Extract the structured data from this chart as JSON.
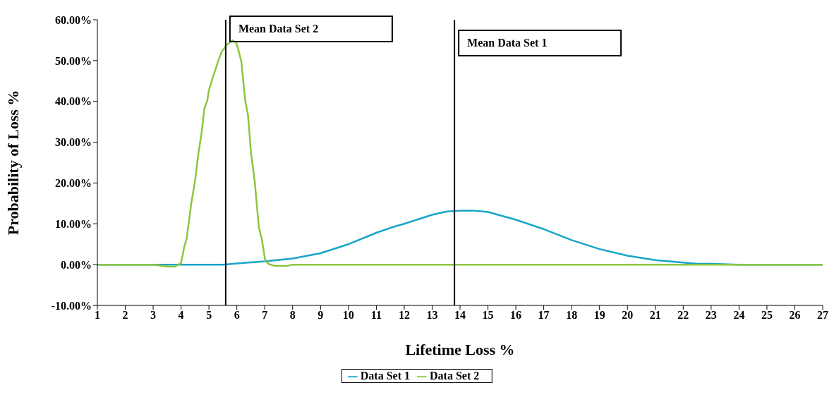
{
  "chart_data": {
    "type": "line",
    "xlabel": "Lifetime Loss %",
    "ylabel": "Probability of Loss %",
    "xlim": [
      1,
      27
    ],
    "xticks": [
      1,
      2,
      3,
      4,
      5,
      6,
      7,
      8,
      9,
      10,
      11,
      12,
      13,
      14,
      15,
      16,
      17,
      18,
      19,
      20,
      21,
      22,
      23,
      24,
      25,
      26,
      27
    ],
    "ylim": [
      -10,
      60
    ],
    "yticks": [
      {
        "value": -10,
        "label": "-10.00%"
      },
      {
        "value": 0,
        "label": "0.00%"
      },
      {
        "value": 10,
        "label": "10.00%"
      },
      {
        "value": 20,
        "label": "20.00%"
      },
      {
        "value": 30,
        "label": "30.00%"
      },
      {
        "value": 40,
        "label": "40.00%"
      },
      {
        "value": 50,
        "label": "50.00%"
      },
      {
        "value": 60,
        "label": "60.00%"
      }
    ],
    "series": [
      {
        "name": "Data Set 1",
        "color": "#17a5c8",
        "x": [
          1,
          3,
          5.5,
          6,
          7,
          8,
          9,
          10,
          11,
          11.5,
          12,
          13,
          13.5,
          14,
          14.5,
          15,
          16,
          17,
          18,
          19,
          20,
          21,
          22,
          22.5,
          23,
          24,
          27
        ],
        "values": [
          0,
          0,
          0,
          0.3,
          0.8,
          1.5,
          2.8,
          5,
          7.8,
          9,
          10,
          12.2,
          13,
          13.2,
          13.2,
          12.9,
          11,
          8.7,
          6,
          3.8,
          2.2,
          1.1,
          0.5,
          0.2,
          0.2,
          0,
          0
        ]
      },
      {
        "name": "Data Set 2",
        "color": "#8cc63f",
        "x": [
          1,
          3,
          3.53,
          3.78,
          4,
          4.12,
          4.2,
          4.37,
          4.5,
          4.62,
          4.75,
          4.83,
          4.94,
          5,
          5.17,
          5.34,
          5.46,
          5.63,
          5.84,
          5.97,
          6.05,
          6.16,
          6.3,
          6.4,
          6.51,
          6.64,
          6.79,
          6.89,
          7.02,
          7.15,
          7.36,
          7.82,
          8,
          27
        ],
        "values": [
          0,
          0,
          -0.5,
          -0.5,
          0.4,
          4.5,
          6.4,
          15.2,
          20.4,
          27.2,
          32.9,
          38.1,
          40.2,
          42.8,
          46.5,
          50.1,
          52.2,
          53.8,
          54.9,
          54.5,
          52.7,
          49.8,
          40.2,
          36.6,
          27.2,
          20.4,
          9,
          6.4,
          0.9,
          0.1,
          -0.3,
          -0.3,
          0,
          0
        ]
      }
    ],
    "ref_lines": [
      {
        "axis": "x",
        "value": 5.6,
        "label": "Mean Data Set 2",
        "color": "#000000"
      },
      {
        "axis": "x",
        "value": 13.8,
        "label": "Mean Data Set 1",
        "color": "#000000"
      }
    ],
    "grid": false,
    "legend": "bottom",
    "marker": "none",
    "line_style": "solid"
  }
}
